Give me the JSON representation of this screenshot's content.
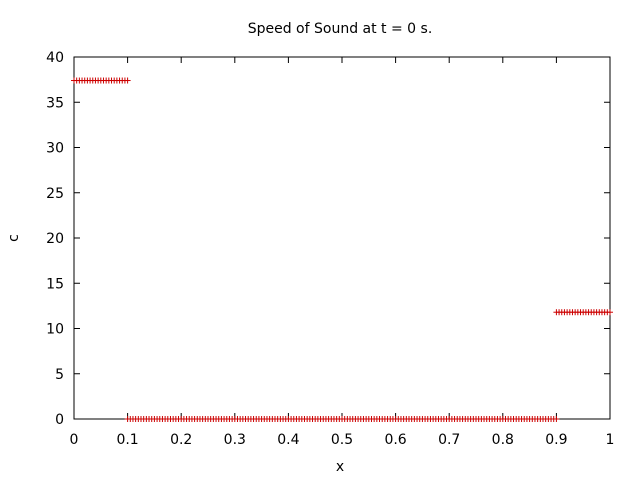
{
  "chart_data": {
    "type": "scatter",
    "title": "Speed of Sound at t = 0 s.",
    "xlabel": "x",
    "ylabel": "c",
    "xlim": [
      0,
      1
    ],
    "ylim": [
      0,
      40
    ],
    "xticks": [
      "0",
      "0.1",
      "0.2",
      "0.3",
      "0.4",
      "0.5",
      "0.6",
      "0.7",
      "0.8",
      "0.9",
      "1"
    ],
    "yticks": [
      "0",
      "5",
      "10",
      "15",
      "20",
      "25",
      "30",
      "35",
      "40"
    ],
    "marker": "plus",
    "grid": false,
    "legend": "none",
    "color": "#cc0000",
    "segments": [
      {
        "x_start": 0.0,
        "x_end": 0.1,
        "y": 37.4
      },
      {
        "x_start": 0.1,
        "x_end": 0.9,
        "y": 0.0
      },
      {
        "x_start": 0.9,
        "x_end": 1.0,
        "y": 11.8
      }
    ]
  }
}
